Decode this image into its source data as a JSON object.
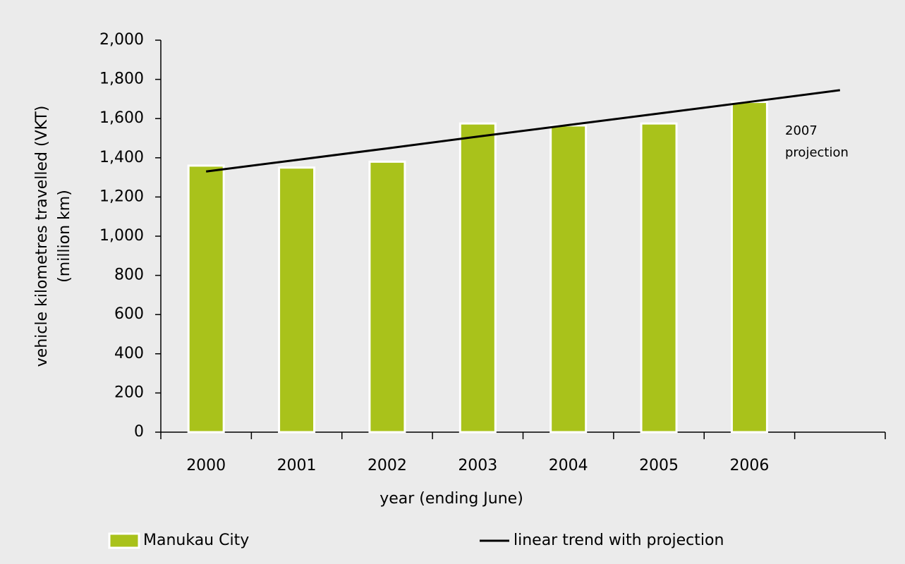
{
  "chart_data": {
    "type": "bar",
    "ylabel": [
      "vehicle kilometres travelled (VKT)",
      "(million km)"
    ],
    "xlabel": "year (ending June)",
    "categories": [
      "2000",
      "2001",
      "2002",
      "2003",
      "2004",
      "2005",
      "2006",
      null
    ],
    "series": [
      {
        "name": "Manukau City",
        "type": "bar",
        "color": "#a9c21b",
        "values": [
          1360,
          1350,
          1380,
          1575,
          1565,
          1575,
          1685,
          null
        ]
      },
      {
        "name": "linear trend with projection",
        "type": "line",
        "color": "#000000",
        "values": [
          1330,
          1389,
          1448,
          1508,
          1567,
          1626,
          1685,
          1745
        ]
      }
    ],
    "annotation": [
      "2007",
      "projection"
    ],
    "ylim": [
      0,
      2000
    ],
    "yticks": [
      0,
      200,
      400,
      600,
      800,
      {
        "value": 1000,
        "label": "1,000"
      },
      {
        "value": 1200,
        "label": "1,200"
      },
      {
        "value": 1400,
        "label": "1,400"
      },
      {
        "value": 1600,
        "label": "1,600"
      },
      {
        "value": 1800,
        "label": "1,800"
      },
      {
        "value": 2000,
        "label": "2,000"
      }
    ]
  }
}
